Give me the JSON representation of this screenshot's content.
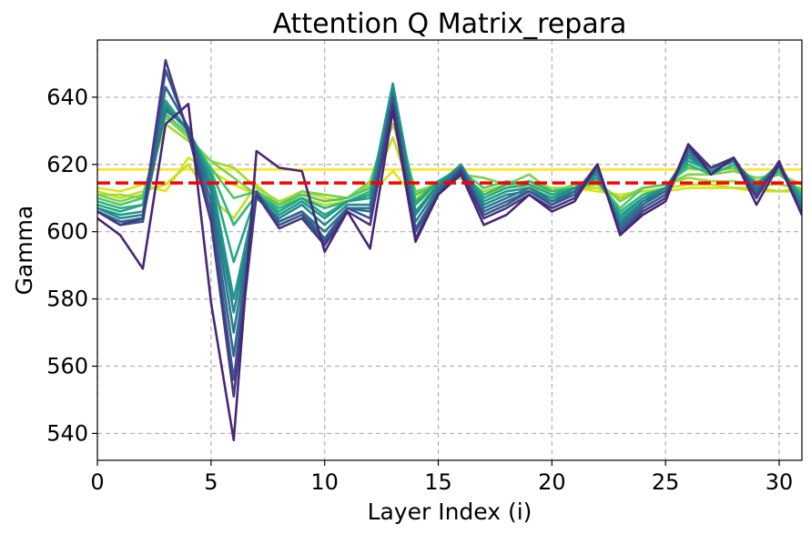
{
  "chart_data": {
    "type": "line",
    "title": "Attention Q Matrix_repara",
    "xlabel": "Layer Index (i)",
    "ylabel": "Gamma",
    "xlim": [
      0,
      31
    ],
    "ylim": [
      532,
      657
    ],
    "xticks": [
      0,
      5,
      10,
      15,
      20,
      25,
      30
    ],
    "yticks": [
      540,
      560,
      580,
      600,
      620,
      640
    ],
    "grid": true,
    "x": [
      0,
      1,
      2,
      3,
      4,
      5,
      6,
      7,
      8,
      9,
      10,
      11,
      12,
      13,
      14,
      15,
      16,
      17,
      18,
      19,
      20,
      21,
      22,
      23,
      24,
      25,
      26,
      27,
      28,
      29,
      30,
      31
    ],
    "reference_line": {
      "y": 614.5,
      "color": "#ff0000",
      "style": "dashed"
    },
    "series": [
      {
        "color": "#fde725",
        "values": [
          618.5,
          618.5,
          618.5,
          618.5,
          618.5,
          618.5,
          618.5,
          618.5,
          618.5,
          618.5,
          618.5,
          618.5,
          618.5,
          618.5,
          618.5,
          618.5,
          618.5,
          618.5,
          618.5,
          618.5,
          618.5,
          618.5,
          618.5,
          618.5,
          618.5,
          618.5,
          618.5,
          618.5,
          618.5,
          618.5,
          618.5,
          618.5
        ]
      },
      {
        "color": "#dde318",
        "values": [
          613,
          612,
          614,
          612,
          622,
          618,
          614,
          611,
          609,
          612,
          610,
          609,
          611,
          618,
          610,
          614,
          616,
          611,
          613,
          614,
          612,
          613,
          612,
          611,
          612,
          612,
          613,
          613,
          613,
          612,
          612,
          613
        ]
      },
      {
        "color": "#c2df23",
        "values": [
          612,
          610,
          612,
          614,
          620,
          610,
          604,
          614,
          608,
          610,
          608,
          609,
          612,
          628,
          608,
          614,
          617,
          611,
          614,
          613,
          612,
          613,
          613,
          610,
          612,
          613,
          614,
          614,
          613,
          613,
          612,
          612
        ]
      },
      {
        "color": "#9fda3a",
        "values": [
          611,
          611,
          610,
          632,
          627,
          621,
          619,
          613,
          609,
          611,
          611,
          610,
          614,
          632,
          611,
          615,
          616,
          612,
          614,
          615,
          613,
          613,
          614,
          610,
          613,
          614,
          616,
          615,
          615,
          614,
          614,
          613
        ]
      },
      {
        "color": "#7ad151",
        "values": [
          611,
          609,
          611,
          634,
          628,
          621,
          616,
          611,
          608,
          612,
          611,
          610,
          615,
          636,
          612,
          614,
          617,
          616,
          614,
          617,
          612,
          614,
          615,
          609,
          613,
          614,
          617,
          617,
          618,
          616,
          617,
          614
        ]
      },
      {
        "color": "#52c569",
        "values": [
          610,
          608,
          610,
          635,
          629,
          619,
          610,
          612,
          608,
          611,
          609,
          610,
          613,
          639,
          611,
          614,
          618,
          613,
          615,
          614,
          611,
          613,
          615,
          607,
          613,
          614,
          619,
          618,
          619,
          615,
          617,
          612
        ]
      },
      {
        "color": "#2fb47c",
        "values": [
          609,
          607,
          608,
          637,
          630,
          618,
          602,
          611,
          607,
          610,
          607,
          609,
          612,
          641,
          609,
          615,
          618,
          611,
          614,
          615,
          612,
          613,
          615,
          606,
          611,
          613,
          620,
          617,
          620,
          614,
          618,
          611
        ]
      },
      {
        "color": "#22a884",
        "values": [
          608,
          606,
          608,
          639,
          630,
          617,
          591,
          611,
          606,
          610,
          605,
          609,
          611,
          644,
          608,
          615,
          619,
          610,
          613,
          614,
          611,
          613,
          616,
          605,
          610,
          613,
          621,
          618,
          621,
          614,
          619,
          610
        ]
      },
      {
        "color": "#1f988b",
        "values": [
          607,
          605,
          606,
          638,
          630,
          616,
          580,
          611,
          605,
          609,
          604,
          609,
          610,
          644,
          606,
          614,
          620,
          609,
          612,
          613,
          610,
          613,
          616,
          604,
          610,
          613,
          622,
          618,
          621,
          614,
          620,
          609
        ]
      },
      {
        "color": "#23888e",
        "values": [
          607,
          604,
          605,
          637,
          630,
          614,
          576,
          610,
          604,
          608,
          602,
          608,
          608,
          642,
          605,
          614,
          619,
          608,
          611,
          612,
          609,
          613,
          617,
          603,
          609,
          613,
          623,
          618,
          621,
          613,
          620,
          608
        ]
      },
      {
        "color": "#2a788e",
        "values": [
          606,
          603,
          604,
          636,
          631,
          612,
          570,
          611,
          603,
          606,
          600,
          607,
          607,
          641,
          603,
          613,
          619,
          607,
          610,
          613,
          609,
          612,
          618,
          602,
          609,
          612,
          623,
          619,
          621,
          613,
          620,
          607
        ]
      },
      {
        "color": "#31688e",
        "values": [
          606,
          603,
          603,
          643,
          631,
          609,
          563,
          611,
          603,
          606,
          598,
          607,
          606,
          640,
          601,
          612,
          619,
          606,
          609,
          612,
          608,
          612,
          619,
          601,
          608,
          612,
          624,
          619,
          622,
          612,
          620,
          606
        ]
      },
      {
        "color": "#39568c",
        "values": [
          606,
          602,
          603,
          648,
          630,
          606,
          556,
          612,
          602,
          605,
          597,
          607,
          604,
          640,
          600,
          611,
          619,
          605,
          608,
          612,
          608,
          611,
          620,
          600,
          607,
          611,
          625,
          619,
          622,
          611,
          621,
          605
        ]
      },
      {
        "color": "#443983",
        "values": [
          606,
          602,
          604,
          651,
          629,
          603,
          551,
          611,
          601,
          604,
          596,
          606,
          602,
          638,
          598,
          611,
          618,
          604,
          607,
          611,
          607,
          610,
          620,
          599,
          606,
          610,
          626,
          619,
          622,
          610,
          621,
          605
        ]
      },
      {
        "color": "#482677",
        "values": [
          604,
          599,
          589,
          632,
          638,
          579,
          538,
          624,
          619,
          618,
          594,
          606,
          595,
          636,
          597,
          611,
          617,
          602,
          605,
          611,
          606,
          609,
          620,
          599,
          605,
          609,
          626,
          617,
          622,
          608,
          620,
          605
        ]
      }
    ]
  }
}
